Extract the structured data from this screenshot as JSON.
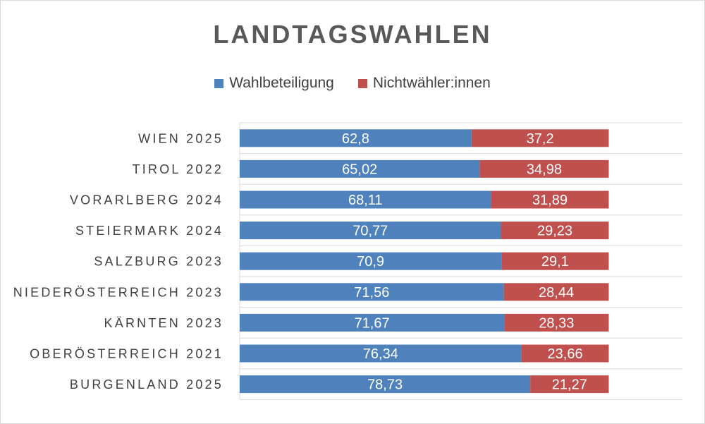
{
  "chart_data": {
    "type": "bar",
    "orientation": "horizontal",
    "stacked": true,
    "title": "LANDTAGSWAHLEN",
    "categories": [
      "WIEN 2025",
      "TIROL 2022",
      "VORARLBERG 2024",
      "STEIERMARK 2024",
      "SALZBURG 2023",
      "NIEDERÖSTERREICH 2023",
      "KÄRNTEN 2023",
      "OBERÖSTERREICH 2021",
      "BURGENLAND 2025"
    ],
    "series": [
      {
        "name": "Wahlbeteiligung",
        "color": "#4f81bd",
        "values": [
          62.8,
          65.02,
          68.11,
          70.77,
          70.9,
          71.56,
          71.67,
          76.34,
          78.73
        ],
        "labels": [
          "62,8",
          "65,02",
          "68,11",
          "70,77",
          "70,9",
          "71,56",
          "71,67",
          "76,34",
          "78,73"
        ]
      },
      {
        "name": "Nichtwähler:innen",
        "color": "#c0504d",
        "values": [
          37.2,
          34.98,
          31.89,
          29.23,
          29.1,
          28.44,
          28.33,
          23.66,
          21.27
        ],
        "labels": [
          "37,2",
          "34,98",
          "31,89",
          "29,23",
          "29,1",
          "28,44",
          "28,33",
          "23,66",
          "21,27"
        ]
      }
    ],
    "xlim": [
      0,
      100
    ],
    "grid": true,
    "legend_position": "top"
  }
}
